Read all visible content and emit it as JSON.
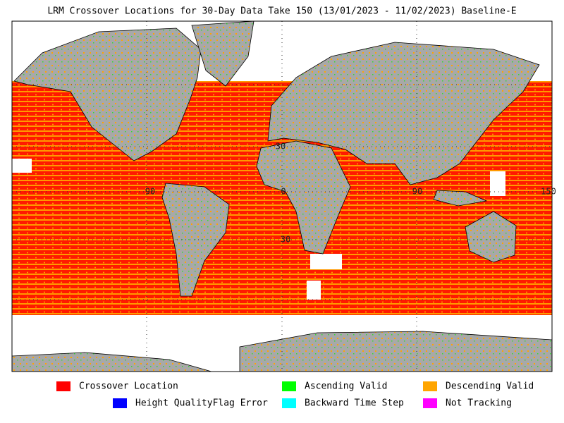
{
  "title": "LRM Crossover Locations for 30-Day Data Take 150 (13/01/2023 - 11/02/2023) Baseline-E",
  "graticule_labels": [
    "90",
    "0",
    "90",
    "150",
    "30",
    "30"
  ],
  "legend": [
    {
      "label": "Crossover Location",
      "color": "#ff0000"
    },
    {
      "label": "Ascending Valid",
      "color": "#00ff00"
    },
    {
      "label": "Descending Valid",
      "color": "#ffa500"
    },
    {
      "label": "Height QualityFlag Error",
      "color": "#0000ff"
    },
    {
      "label": "Backward Time Step",
      "color": "#00ffff"
    },
    {
      "label": "Not Tracking",
      "color": "#ff00ff"
    }
  ]
}
